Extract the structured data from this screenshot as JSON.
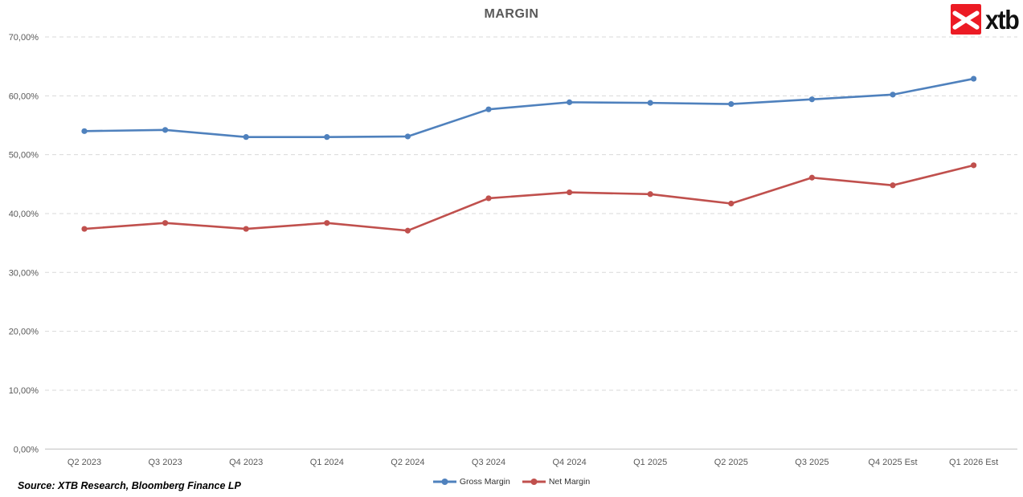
{
  "title": "MARGIN",
  "logo": {
    "text": "xtb",
    "red": "#ec1b24"
  },
  "source": "Source: XTB Research, Bloomberg Finance LP",
  "legend": [
    {
      "label": "Gross Margin",
      "color": "#4F81BD"
    },
    {
      "label": "Net Margin",
      "color": "#C0504D"
    }
  ],
  "colors": {
    "gridline": "#d9d9d9",
    "axis_line": "#bfbfbf",
    "tick_label": "#595959",
    "title": "#595959",
    "gross_margin": "#4F81BD",
    "net_margin": "#C0504D"
  },
  "chart_data": {
    "type": "line",
    "title": "MARGIN",
    "xlabel": "",
    "ylabel": "",
    "categories": [
      "Q2 2023",
      "Q3 2023",
      "Q4 2023",
      "Q1 2024",
      "Q2 2024",
      "Q3 2024",
      "Q4 2024",
      "Q1 2025",
      "Q2 2025",
      "Q3 2025",
      "Q4 2025 Est",
      "Q1 2026 Est"
    ],
    "series": [
      {
        "name": "Gross Margin",
        "color": "#4F81BD",
        "values": [
          54.0,
          54.2,
          53.0,
          53.0,
          53.1,
          57.7,
          58.9,
          58.8,
          58.6,
          59.4,
          60.2,
          62.9
        ]
      },
      {
        "name": "Net Margin",
        "color": "#C0504D",
        "values": [
          37.4,
          38.4,
          37.4,
          38.4,
          37.1,
          42.6,
          43.6,
          43.3,
          41.7,
          46.1,
          44.8,
          48.2
        ]
      }
    ],
    "ylim": [
      0,
      70
    ],
    "ytick_step": 10,
    "ytick_labels": [
      "0,00%",
      "10,00%",
      "20,00%",
      "30,00%",
      "40,00%",
      "50,00%",
      "60,00%",
      "70,00%"
    ],
    "grid": "horizontal-dashed",
    "legend_position": "bottom-center"
  }
}
